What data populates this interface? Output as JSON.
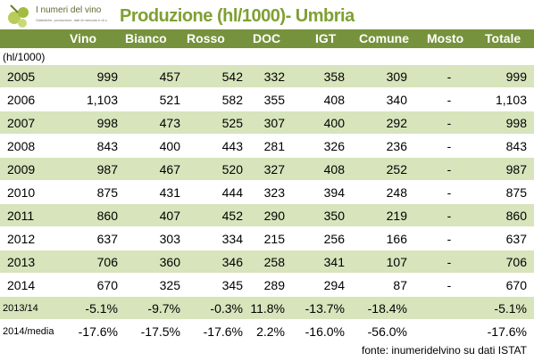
{
  "logo": {
    "title": "I numeri del vino",
    "subtitle": "Statistiche, produzione, dati di mercato e di consumo"
  },
  "title": "Produzione (hl/1000)- Umbria",
  "unit": "(hl/1000)",
  "columns": [
    "Vino",
    "Bianco",
    "Rosso",
    "DOC",
    "IGT",
    "Comune",
    "Mosto",
    "Totale"
  ],
  "rows": [
    {
      "year": "2005",
      "values": [
        "999",
        "457",
        "542",
        "332",
        "358",
        "309",
        "-",
        "999"
      ]
    },
    {
      "year": "2006",
      "values": [
        "1,103",
        "521",
        "582",
        "355",
        "408",
        "340",
        "-",
        "1,103"
      ]
    },
    {
      "year": "2007",
      "values": [
        "998",
        "473",
        "525",
        "307",
        "400",
        "292",
        "-",
        "998"
      ]
    },
    {
      "year": "2008",
      "values": [
        "843",
        "400",
        "443",
        "281",
        "326",
        "236",
        "-",
        "843"
      ]
    },
    {
      "year": "2009",
      "values": [
        "987",
        "467",
        "520",
        "327",
        "408",
        "252",
        "-",
        "987"
      ]
    },
    {
      "year": "2010",
      "values": [
        "875",
        "431",
        "444",
        "323",
        "394",
        "248",
        "-",
        "875"
      ]
    },
    {
      "year": "2011",
      "values": [
        "860",
        "407",
        "452",
        "290",
        "350",
        "219",
        "-",
        "860"
      ]
    },
    {
      "year": "2012",
      "values": [
        "637",
        "303",
        "334",
        "215",
        "256",
        "166",
        "-",
        "637"
      ]
    },
    {
      "year": "2013",
      "values": [
        "706",
        "360",
        "346",
        "258",
        "341",
        "107",
        "-",
        "706"
      ]
    },
    {
      "year": "2014",
      "values": [
        "670",
        "325",
        "345",
        "289",
        "294",
        "87",
        "-",
        "670"
      ]
    },
    {
      "year": "2013/14",
      "values": [
        "-5.1%",
        "-9.7%",
        "-0.3%",
        "11.8%",
        "-13.7%",
        "-18.4%",
        "",
        "-5.1%"
      ]
    },
    {
      "year": "2014/media",
      "values": [
        "-17.6%",
        "-17.5%",
        "-17.6%",
        "2.2%",
        "-16.0%",
        "-56.0%",
        "",
        "-17.6%"
      ]
    }
  ],
  "source": "fonte: inumeridelvino su dati ISTAT",
  "colors": {
    "header_bg": "#76923c",
    "row_shade": "#d7e4bc",
    "title": "#7fa032"
  }
}
